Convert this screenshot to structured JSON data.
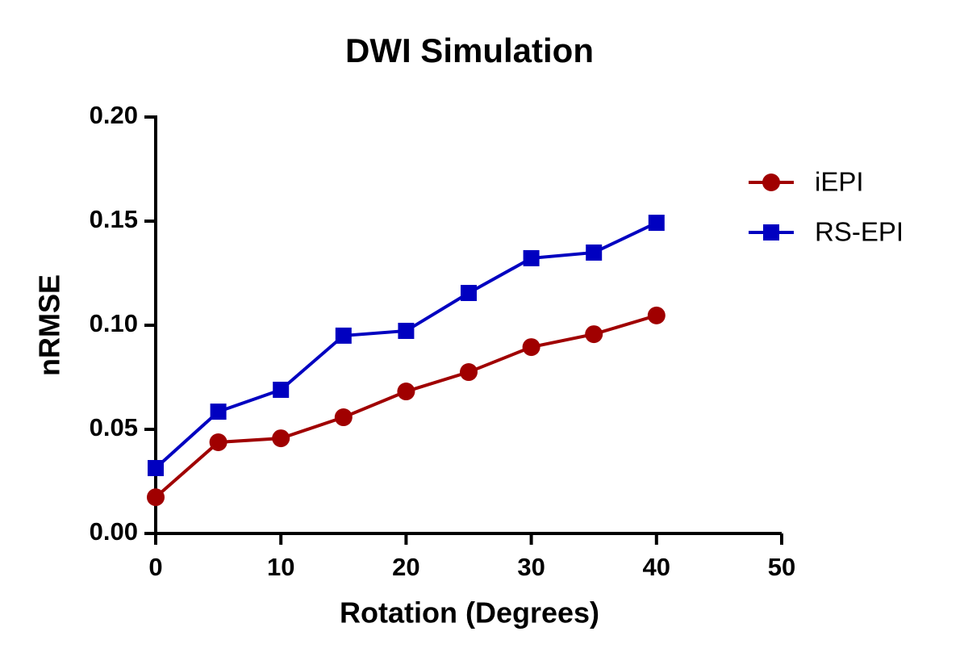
{
  "chart_data": {
    "type": "line",
    "title": "DWI Simulation",
    "x_label": "Rotation (Degrees)",
    "y_label": "nRMSE",
    "x": [
      0,
      5,
      10,
      15,
      20,
      25,
      30,
      35,
      40
    ],
    "series": [
      {
        "name": "iEPI",
        "color": "#a00000",
        "marker": "circle",
        "values": [
          0.0174,
          0.0438,
          0.0457,
          0.0558,
          0.0682,
          0.0775,
          0.0895,
          0.0957,
          0.1047
        ]
      },
      {
        "name": "RS-EPI",
        "color": "#0000c0",
        "marker": "square",
        "values": [
          0.0314,
          0.0585,
          0.069,
          0.095,
          0.0973,
          0.1155,
          0.1322,
          0.1349,
          0.1492
        ]
      }
    ],
    "xlim": [
      0,
      50
    ],
    "xticks": [
      0,
      10,
      20,
      30,
      40,
      50
    ],
    "ylim": [
      0,
      0.2
    ],
    "yticks": [
      {
        "value": 0,
        "label": "0.00"
      },
      {
        "value": 0.05,
        "label": "0.05"
      },
      {
        "value": 0.1,
        "label": "0.10"
      },
      {
        "value": 0.15,
        "label": "0.15"
      },
      {
        "value": 0.2,
        "label": "0.20"
      }
    ],
    "grid": false,
    "legend": "right"
  }
}
